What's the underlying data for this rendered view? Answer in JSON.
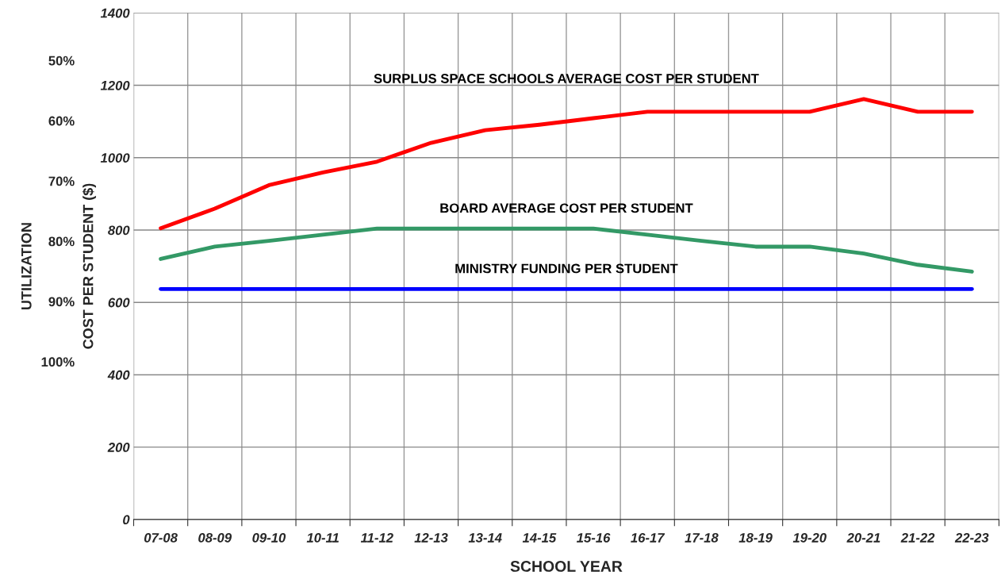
{
  "chart_data": {
    "type": "line",
    "xlabel": "SCHOOL YEAR",
    "ylabel": "COST PER STUDENT ($)",
    "y2label": "UTILIZATION",
    "categories": [
      "07-08",
      "08-09",
      "09-10",
      "10-11",
      "11-12",
      "12-13",
      "13-14",
      "14-15",
      "15-16",
      "16-17",
      "17-18",
      "18-19",
      "19-20",
      "20-21",
      "21-22",
      "22-23"
    ],
    "series": [
      {
        "name": "SURPLUS SPACE SCHOOLS AVERAGE COST PER STUDENT",
        "color": "#ff0000",
        "values": [
          805,
          859,
          924,
          959,
          989,
          1041,
          1076,
          1091,
          1109,
          1127,
          1127,
          1127,
          1127,
          1162,
          1127,
          1127
        ]
      },
      {
        "name": "BOARD AVERAGE COST PER STUDENT",
        "color": "#339966",
        "values": [
          720,
          754,
          770,
          787,
          804,
          804,
          804,
          804,
          804,
          787,
          770,
          754,
          754,
          735,
          704,
          685
        ]
      },
      {
        "name": "MINISTRY FUNDING PER STUDENT",
        "color": "#0000ff",
        "values": [
          637,
          637,
          637,
          637,
          637,
          637,
          637,
          637,
          637,
          637,
          637,
          637,
          637,
          637,
          637,
          637
        ]
      }
    ],
    "ylim": [
      0,
      1400
    ],
    "yticks": [
      0,
      200,
      400,
      600,
      800,
      1000,
      1200,
      1400
    ],
    "y2lim": [
      126.2,
      42.1
    ],
    "y2ticks": [
      {
        "value": 50,
        "label": "50%"
      },
      {
        "value": 60,
        "label": "60%"
      },
      {
        "value": 70,
        "label": "70%"
      },
      {
        "value": 80,
        "label": "80%"
      },
      {
        "value": 90,
        "label": "90%"
      },
      {
        "value": 100,
        "label": "100%"
      }
    ],
    "grid": true,
    "legend": false,
    "marker": "none",
    "line_style": "solid"
  }
}
